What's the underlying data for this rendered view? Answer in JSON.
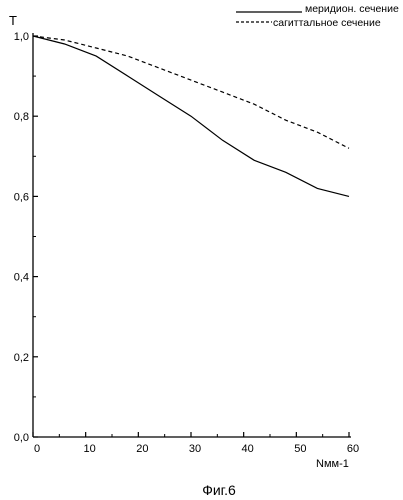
{
  "chart_data": {
    "type": "line",
    "xlabel": "Nмм-1",
    "ylabel": "T",
    "caption": "Фиг.6",
    "xlim": [
      0,
      60
    ],
    "ylim": [
      0.0,
      1.0
    ],
    "xticks": [
      0,
      10,
      20,
      30,
      40,
      50,
      60
    ],
    "yticks": [
      0.0,
      0.2,
      0.4,
      0.6,
      0.8,
      1.0
    ],
    "xtick_labels": [
      "0",
      "10",
      "20",
      "30",
      "40",
      "50",
      "60"
    ],
    "ytick_labels": [
      "0,0",
      "0,2",
      "0,4",
      "0,6",
      "0,8",
      "1,0"
    ],
    "legend_position": "top-right",
    "grid": false,
    "series": [
      {
        "name": "меридион. сечение",
        "style": "solid",
        "x": [
          0,
          6,
          12,
          18,
          24,
          30,
          36,
          42,
          48,
          54,
          60
        ],
        "y": [
          1.0,
          0.98,
          0.95,
          0.9,
          0.85,
          0.8,
          0.74,
          0.69,
          0.66,
          0.62,
          0.6
        ]
      },
      {
        "name": "сагиттальное сечение",
        "style": "dashed",
        "x": [
          0,
          6,
          12,
          18,
          24,
          30,
          36,
          42,
          48,
          54,
          60
        ],
        "y": [
          1.0,
          0.99,
          0.97,
          0.95,
          0.92,
          0.89,
          0.86,
          0.83,
          0.79,
          0.76,
          0.72
        ]
      }
    ]
  }
}
